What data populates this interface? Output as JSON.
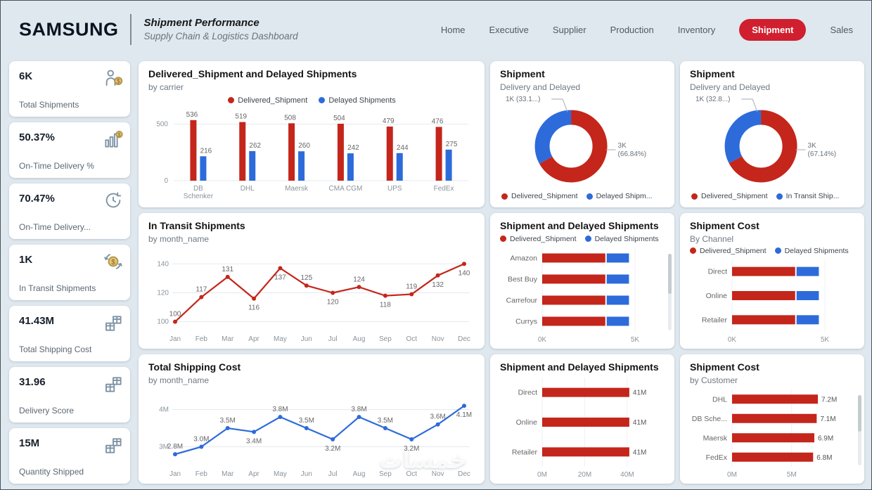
{
  "meta": {
    "watermark": "خمسات"
  },
  "colors": {
    "red": "#c4261b",
    "blue": "#2d6bdb",
    "nav_active_bg": "#d01f2f",
    "page_bg": "#dfe8ee",
    "card_bg": "#ffffff"
  },
  "header": {
    "brand": "SAMSUNG",
    "title": "Shipment Performance",
    "subtitle": "Supply Chain & Logistics Dashboard",
    "nav": [
      {
        "label": "Home",
        "active": false
      },
      {
        "label": "Executive",
        "active": false
      },
      {
        "label": "Supplier",
        "active": false
      },
      {
        "label": "Production",
        "active": false
      },
      {
        "label": "Inventory",
        "active": false
      },
      {
        "label": "Shipment",
        "active": true
      },
      {
        "label": "Sales",
        "active": false
      }
    ]
  },
  "kpis": [
    {
      "value": "6K",
      "label": "Total Shipments",
      "icon": "courier-coin-icon"
    },
    {
      "value": "50.37%",
      "label": "On-Time Delivery %",
      "icon": "bar-coin-icon"
    },
    {
      "value": "70.47%",
      "label": "On-Time Delivery...",
      "icon": "return-clock-icon"
    },
    {
      "value": "1K",
      "label": "In Transit Shipments",
      "icon": "dollar-transfer-icon"
    },
    {
      "value": "41.43M",
      "label": "Total Shipping Cost",
      "icon": "gift-boxes-icon"
    },
    {
      "value": "31.96",
      "label": "Delivery Score",
      "icon": "gift-boxes-icon"
    },
    {
      "value": "15M",
      "label": "Quantity Shipped",
      "icon": "gift-boxes-icon"
    }
  ],
  "chart_data": {
    "carrier_bars": {
      "type": "bar",
      "title": "Delivered_Shipment and Delayed Shipments",
      "subtitle": "by carrier",
      "legend": [
        {
          "label": "Delivered_Shipment",
          "color": "#c4261b"
        },
        {
          "label": "Delayed Shipments",
          "color": "#2d6bdb"
        }
      ],
      "categories": [
        "DB Schenker",
        "DHL",
        "Maersk",
        "CMA CGM",
        "UPS",
        "FedEx"
      ],
      "series": [
        {
          "name": "Delivered_Shipment",
          "color": "#c4261b",
          "values": [
            536,
            519,
            508,
            504,
            479,
            476
          ]
        },
        {
          "name": "Delayed Shipments",
          "color": "#2d6bdb",
          "values": [
            216,
            262,
            260,
            242,
            244,
            275
          ]
        }
      ],
      "yticks": [
        0,
        500
      ],
      "ylim": [
        0,
        560
      ]
    },
    "donut_delayed": {
      "type": "pie",
      "title": "Shipment",
      "subtitle": "Delivery and Delayed",
      "slices": [
        {
          "label": "Delivered_Shipment",
          "color": "#c4261b",
          "pct": 66.84,
          "callout": [
            "3K",
            "(66.84%)"
          ]
        },
        {
          "label": "Delayed Shipm...",
          "color": "#2d6bdb",
          "pct": 33.16,
          "callout": [
            "1K (33.1...)"
          ]
        }
      ],
      "legend": [
        {
          "label": "Delivered_Shipment",
          "color": "#c4261b"
        },
        {
          "label": "Delayed Shipm...",
          "color": "#2d6bdb"
        }
      ]
    },
    "donut_transit": {
      "type": "pie",
      "title": "Shipment",
      "subtitle": "Delivery and Delayed",
      "slices": [
        {
          "label": "Delivered_Shipment",
          "color": "#c4261b",
          "pct": 67.14,
          "callout": [
            "3K",
            "(67.14%)"
          ]
        },
        {
          "label": "In Transit Ship...",
          "color": "#2d6bdb",
          "pct": 32.86,
          "callout": [
            "1K (32.8...)"
          ]
        }
      ],
      "legend": [
        {
          "label": "Delivered_Shipment",
          "color": "#c4261b"
        },
        {
          "label": "In Transit Ship...",
          "color": "#2d6bdb"
        }
      ]
    },
    "transit_line": {
      "type": "line",
      "title": "In Transit Shipments",
      "subtitle": "by month_name",
      "color": "#c4261b",
      "x": [
        "Jan",
        "Feb",
        "Mar",
        "Apr",
        "May",
        "Jun",
        "Jul",
        "Aug",
        "Sep",
        "Oct",
        "Nov",
        "Dec"
      ],
      "values": [
        100,
        117,
        131,
        116,
        137,
        125,
        120,
        124,
        118,
        119,
        132,
        140
      ],
      "labels": [
        "100",
        "117",
        "131",
        "116",
        "137",
        "125",
        "120",
        "124",
        "118",
        "119",
        "132",
        "140"
      ],
      "label_pos": [
        "above",
        "above",
        "above",
        "below",
        "below",
        "above",
        "below",
        "above",
        "below",
        "above",
        "below",
        "below"
      ],
      "yticks": [
        100,
        120,
        140
      ],
      "ytick_labels": [
        "100",
        "120",
        "140"
      ],
      "ylim": [
        94,
        146
      ]
    },
    "retailer_bars": {
      "type": "hbar",
      "title": "Shipment and Delayed Shipments",
      "legend": [
        {
          "label": "Delivered_Shipment",
          "color": "#c4261b"
        },
        {
          "label": "Delayed Shipments",
          "color": "#2d6bdb"
        }
      ],
      "categories": [
        "Amazon",
        "Best Buy",
        "Carrefour",
        "Currys"
      ],
      "series": [
        {
          "name": "Delivered_Shipment",
          "color": "#c4261b",
          "values": [
            3.4,
            3.4,
            3.4,
            3.4
          ]
        },
        {
          "name": "Delayed Shipments",
          "color": "#2d6bdb",
          "values": [
            1.2,
            1.2,
            1.2,
            1.2
          ]
        }
      ],
      "xlim": [
        0,
        6.1
      ],
      "xticks": [
        0,
        5
      ],
      "xtick_labels": [
        "0K",
        "5K"
      ],
      "scrollbar": true
    },
    "channel_bars": {
      "type": "hbar",
      "title": "Shipment Cost",
      "subtitle": "By Channel",
      "legend": [
        {
          "label": "Delivered_Shipment",
          "color": "#c4261b"
        },
        {
          "label": "Delayed Shipments",
          "color": "#2d6bdb"
        }
      ],
      "categories": [
        "Direct",
        "Online",
        "Retailer"
      ],
      "series": [
        {
          "name": "Delivered_Shipment",
          "color": "#c4261b",
          "values": [
            3.4,
            3.4,
            3.4
          ]
        },
        {
          "name": "Delayed Shipments",
          "color": "#2d6bdb",
          "values": [
            1.2,
            1.2,
            1.2
          ]
        }
      ],
      "xlim": [
        0,
        6.1
      ],
      "xticks": [
        0,
        5
      ],
      "xtick_labels": [
        "0K",
        "5K"
      ]
    },
    "cost_line": {
      "type": "line",
      "title": "Total Shipping Cost",
      "subtitle": "by month_name",
      "color": "#2d6bdb",
      "x": [
        "Jan",
        "Feb",
        "Mar",
        "Apr",
        "May",
        "Jun",
        "Jul",
        "Aug",
        "Sep",
        "Oct",
        "Nov",
        "Dec"
      ],
      "values": [
        2.8,
        3.0,
        3.5,
        3.4,
        3.8,
        3.5,
        3.2,
        3.8,
        3.5,
        3.2,
        3.6,
        4.1
      ],
      "labels": [
        "2.8M",
        "3.0M",
        "3.5M",
        "3.4M",
        "3.8M",
        "3.5M",
        "3.2M",
        "3.8M",
        "3.5M",
        "3.2M",
        "3.6M",
        "4.1M"
      ],
      "label_pos": [
        "above",
        "above",
        "above",
        "below",
        "above",
        "above",
        "below",
        "above",
        "above",
        "below",
        "above",
        "below"
      ],
      "yticks": [
        3,
        4
      ],
      "ytick_labels": [
        "3M",
        "4M"
      ],
      "ylim": [
        2.5,
        4.35
      ]
    },
    "channel_cost_bars": {
      "type": "hbar",
      "title": "Shipment and Delayed Shipments",
      "categories": [
        "Direct",
        "Online",
        "Retailer"
      ],
      "series": [
        {
          "name": "Shipping Cost",
          "color": "#c4261b",
          "values": [
            41,
            41,
            41
          ]
        }
      ],
      "bar_labels": [
        "41M",
        "41M",
        "41M"
      ],
      "xlim": [
        0,
        46
      ],
      "xticks": [
        0,
        20,
        40
      ],
      "xtick_labels": [
        "0M",
        "20M",
        "40M"
      ]
    },
    "customer_cost_bars": {
      "type": "hbar",
      "title": "Shipment Cost",
      "subtitle": "by Customer",
      "categories": [
        "DHL",
        "DB Sche...",
        "Maersk",
        "FedEx"
      ],
      "series": [
        {
          "name": "Shipping Cost",
          "color": "#c4261b",
          "values": [
            7.2,
            7.1,
            6.9,
            6.8
          ]
        }
      ],
      "bar_labels": [
        "7.2M",
        "7.1M",
        "6.9M",
        "6.8M"
      ],
      "xlim": [
        0,
        8.2
      ],
      "xticks": [
        0,
        5
      ],
      "xtick_labels": [
        "0M",
        "5M"
      ],
      "scrollbar": true
    }
  }
}
